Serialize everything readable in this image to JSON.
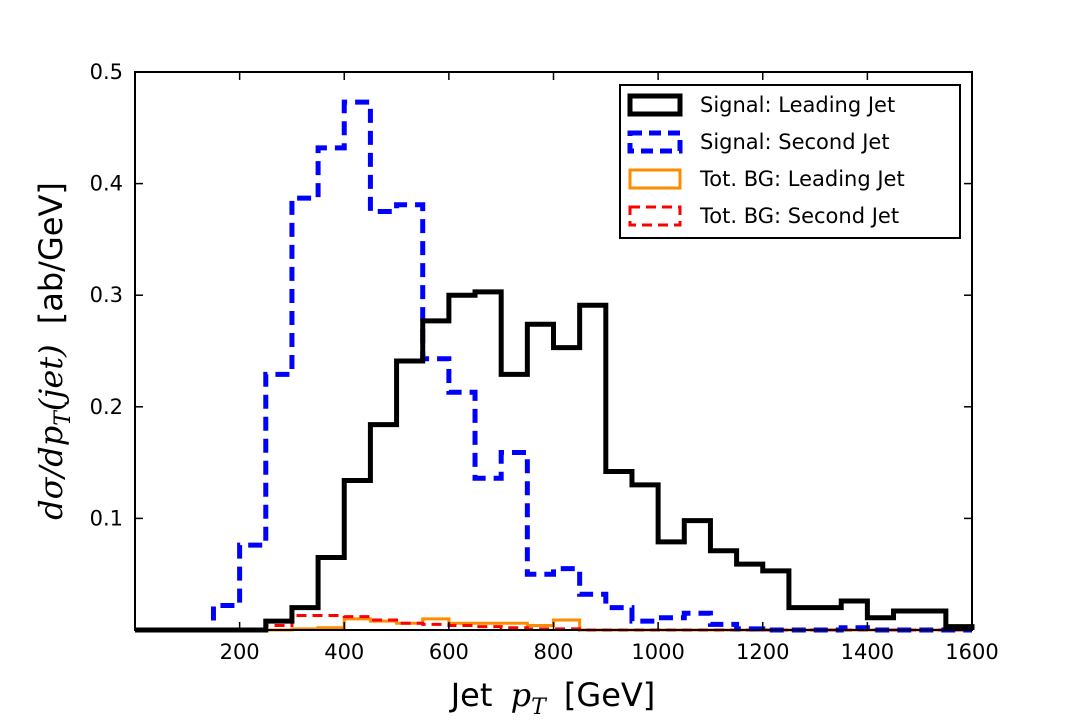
{
  "chart_data": {
    "type": "histogram-step",
    "title": "",
    "xlabel": {
      "prefix": "Jet",
      "math": "p",
      "sub": "T",
      "suffix": "[GeV]"
    },
    "ylabel": {
      "math": "dσ/dp",
      "sub": "T",
      "arg": "(jet)",
      "suffix": "[ab/GeV]"
    },
    "xlim": [
      0,
      1600
    ],
    "ylim": [
      0,
      0.5
    ],
    "xticks": [
      200,
      400,
      600,
      800,
      1000,
      1200,
      1400,
      1600
    ],
    "yticks": [
      0.1,
      0.2,
      0.3,
      0.4,
      0.5
    ],
    "xtick_labels": [
      "200",
      "400",
      "600",
      "800",
      "1000",
      "1200",
      "1400",
      "1600"
    ],
    "ytick_labels": [
      "0.1",
      "0.2",
      "0.3",
      "0.4",
      "0.5"
    ],
    "bin_edges": [
      0,
      50,
      100,
      150,
      200,
      250,
      300,
      350,
      400,
      450,
      500,
      550,
      600,
      650,
      700,
      750,
      800,
      850,
      900,
      950,
      1000,
      1050,
      1100,
      1150,
      1200,
      1250,
      1300,
      1350,
      1400,
      1450,
      1500,
      1550,
      1600
    ],
    "legend_position": "top-right",
    "series": [
      {
        "name": "Signal: Leading Jet",
        "color": "#000000",
        "style": "solid",
        "width": 5,
        "values": [
          0,
          0,
          0,
          0,
          0,
          0.008,
          0.02,
          0.065,
          0.134,
          0.184,
          0.241,
          0.277,
          0.3,
          0.303,
          0.229,
          0.274,
          0.253,
          0.291,
          0.142,
          0.13,
          0.079,
          0.098,
          0.071,
          0.059,
          0.053,
          0.02,
          0.02,
          0.026,
          0.011,
          0.017,
          0.017,
          0.003
        ]
      },
      {
        "name": "Signal: Second Jet",
        "color": "#0000ff",
        "style": "dashed",
        "width": 5,
        "values": [
          0,
          0,
          0,
          0.022,
          0.076,
          0.229,
          0.387,
          0.432,
          0.473,
          0.375,
          0.381,
          0.243,
          0.213,
          0.136,
          0.159,
          0.05,
          0.055,
          0.032,
          0.02,
          0.008,
          0.011,
          0.015,
          0.005,
          0.001,
          0,
          0,
          0,
          0.002,
          0,
          0,
          0,
          0
        ]
      },
      {
        "name": "Tot. BG: Leading Jet",
        "color": "#ff8c00",
        "style": "solid",
        "width": 3,
        "values": [
          0,
          0,
          0,
          0,
          0,
          0,
          0.001,
          0.002,
          0.01,
          0.008,
          0.006,
          0.01,
          0.006,
          0.006,
          0.006,
          0.004,
          0.009,
          0,
          0,
          0,
          0,
          0,
          0,
          0,
          0,
          0,
          0,
          0,
          0,
          0,
          0,
          0
        ]
      },
      {
        "name": "Tot. BG: Second Jet",
        "color": "#ff0000",
        "style": "dashed",
        "width": 3,
        "values": [
          0,
          0,
          0,
          0,
          0,
          0.004,
          0.013,
          0.013,
          0.012,
          0.009,
          0.006,
          0.005,
          0.004,
          0.003,
          0.002,
          0.001,
          0.001,
          0,
          0,
          0,
          0,
          0,
          0,
          0,
          0,
          0,
          0,
          0,
          0,
          0,
          0,
          0
        ]
      }
    ]
  }
}
